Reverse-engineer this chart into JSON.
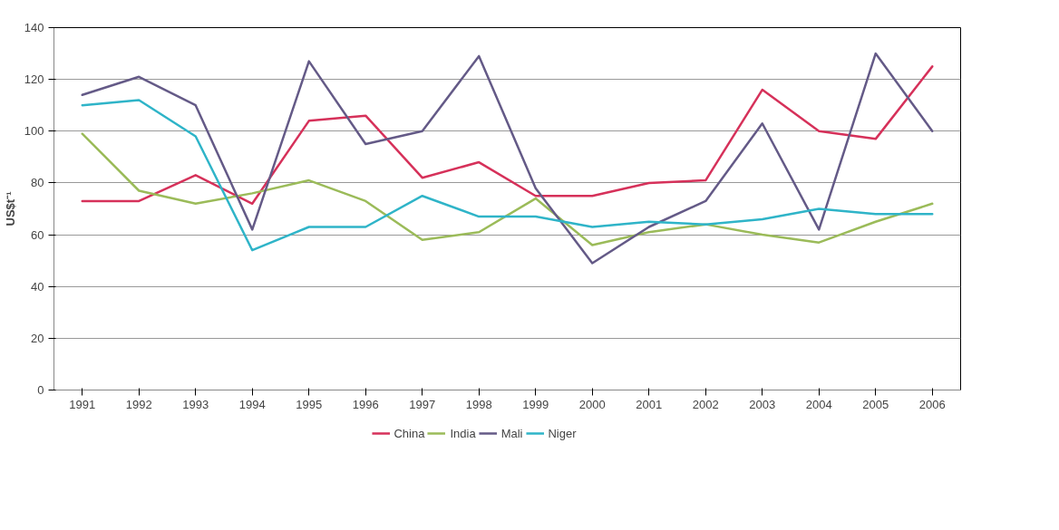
{
  "chart_data": {
    "type": "line",
    "ylabel": "US$t⁻¹",
    "categories": [
      "1991",
      "1992",
      "1993",
      "1994",
      "1995",
      "1996",
      "1997",
      "1998",
      "1999",
      "2000",
      "2001",
      "2002",
      "2003",
      "2004",
      "2005",
      "2006"
    ],
    "series": [
      {
        "name": "China",
        "color": "#d6315a",
        "values": [
          73,
          73,
          83,
          72,
          104,
          106,
          82,
          88,
          75,
          75,
          80,
          81,
          116,
          100,
          97,
          125
        ]
      },
      {
        "name": "India",
        "color": "#9bbb59",
        "values": [
          99,
          77,
          72,
          76,
          81,
          73,
          58,
          61,
          74,
          56,
          61,
          64,
          60,
          57,
          65,
          72
        ]
      },
      {
        "name": "Mali",
        "color": "#645a87",
        "values": [
          114,
          121,
          110,
          62,
          127,
          95,
          100,
          129,
          78,
          49,
          63,
          73,
          103,
          62,
          130,
          100
        ]
      },
      {
        "name": "Niger",
        "color": "#2fb4c8",
        "values": [
          110,
          112,
          98,
          54,
          63,
          63,
          75,
          67,
          67,
          63,
          65,
          64,
          66,
          70,
          68,
          68
        ]
      }
    ],
    "ylim": [
      0,
      140
    ],
    "yticks": [
      0,
      20,
      40,
      60,
      80,
      100,
      120,
      140
    ],
    "grid": "y",
    "legend": "bottom",
    "marker": "none",
    "line_style": "solid"
  }
}
